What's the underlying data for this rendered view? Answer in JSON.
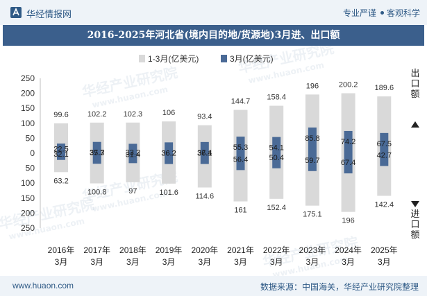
{
  "header": {
    "site_name": "华经情报网",
    "tag1": "专业严谨",
    "tag2": "客观科学"
  },
  "watermark": {
    "cn": "华经产业研究院",
    "en": "www.huaon.com"
  },
  "chart_data": {
    "type": "bar",
    "title": "2016-2025年河北省(境内目的地/货源地)3月进、出口额",
    "categories": [
      [
        "2016年",
        "3月"
      ],
      [
        "2017年",
        "3月"
      ],
      [
        "2018年",
        "3月"
      ],
      [
        "2019年",
        "3月"
      ],
      [
        "2020年",
        "3月"
      ],
      [
        "2021年",
        "3月"
      ],
      [
        "2022年",
        "3月"
      ],
      [
        "2023年",
        "3月"
      ],
      [
        "2024年",
        "3月"
      ],
      [
        "2025年",
        "3月"
      ]
    ],
    "series": [
      {
        "name": "1-3月(亿美元)",
        "color": "#d9d9d9",
        "export": [
          99.6,
          102.2,
          102.3,
          106,
          93.4,
          144.7,
          158.4,
          196,
          200.2,
          189.6
        ],
        "import": [
          63.2,
          100.8,
          97,
          101.6,
          114.6,
          161,
          152.4,
          175.1,
          196,
          142.4
        ]
      },
      {
        "name": "3月(亿美元)",
        "color": "#4a6a96",
        "export": [
          32.1,
          37.7,
          31.4,
          36.2,
          37.4,
          55.3,
          54.1,
          85.8,
          74.2,
          67.5
        ],
        "import": [
          22.5,
          35.3,
          33.2,
          36.2,
          36.1,
          56.4,
          50.4,
          59.7,
          67.4,
          42.7
        ]
      }
    ],
    "y_ticks": [
      "250",
      "200",
      "150",
      "100",
      "50",
      "0",
      "50",
      "100",
      "150",
      "200",
      "250"
    ],
    "ylim": [
      -250,
      250
    ],
    "upper_label": "出口额",
    "lower_label": "进口额",
    "grid": false,
    "legend_position": "top-center"
  },
  "footer": {
    "website": "www.huaon.com",
    "source": "数据来源：中国海关，华经产业研究院整理"
  }
}
